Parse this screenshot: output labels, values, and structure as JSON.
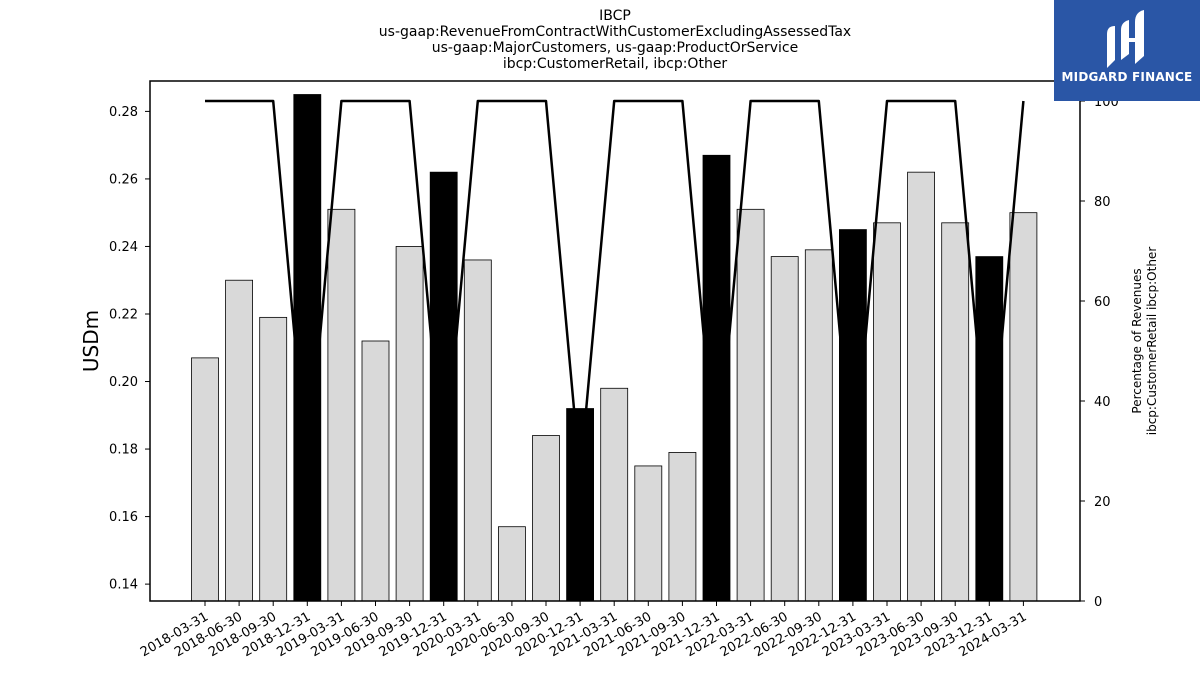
{
  "title": {
    "lines": [
      "IBCP",
      "us-gaap:RevenueFromContractWithCustomerExcludingAssessedTax",
      "us-gaap:MajorCustomers, us-gaap:ProductOrService",
      "ibcp:CustomerRetail, ibcp:Other"
    ]
  },
  "logo": {
    "text": "MIDGARD FINANCE",
    "bg_color": "#2a56a6"
  },
  "chart_data": {
    "type": "bar",
    "categories": [
      "2018-03-31",
      "2018-06-30",
      "2018-09-30",
      "2018-12-31",
      "2019-03-31",
      "2019-06-30",
      "2019-09-30",
      "2019-12-31",
      "2020-03-31",
      "2020-06-30",
      "2020-09-30",
      "2020-12-31",
      "2021-03-31",
      "2021-06-30",
      "2021-09-30",
      "2021-12-31",
      "2022-03-31",
      "2022-06-30",
      "2022-09-30",
      "2022-12-31",
      "2023-03-31",
      "2023-06-30",
      "2023-09-30",
      "2023-12-31",
      "2024-03-31"
    ],
    "series": [
      {
        "axis": "left",
        "kind": "bar",
        "values": [
          0.207,
          0.23,
          0.219,
          0.285,
          0.251,
          0.212,
          0.24,
          0.262,
          0.236,
          0.157,
          0.184,
          0.192,
          0.198,
          0.175,
          0.179,
          0.267,
          0.251,
          0.237,
          0.239,
          0.245,
          0.247,
          0.262,
          0.247,
          0.237,
          0.25
        ],
        "highlight": [
          false,
          false,
          false,
          true,
          false,
          false,
          false,
          true,
          false,
          false,
          false,
          true,
          false,
          false,
          false,
          true,
          false,
          false,
          false,
          true,
          false,
          false,
          false,
          true,
          false
        ],
        "color": "#d9d9d9",
        "highlight_color": "#000000"
      },
      {
        "axis": "right",
        "kind": "line",
        "values": [
          100,
          100,
          100,
          25,
          100,
          100,
          100,
          25,
          100,
          100,
          100,
          25,
          100,
          100,
          100,
          25,
          100,
          100,
          100,
          25,
          100,
          100,
          100,
          25,
          100
        ],
        "color": "#000000"
      }
    ],
    "ylabel": "USDm",
    "ylabel_right": [
      "Percentage of Revenues",
      "ibcp:CustomerRetail ibcp:Other"
    ],
    "ylim": [
      0.135,
      0.289
    ],
    "ylim_right": [
      0,
      104
    ],
    "yticks": [
      "0.14",
      "0.16",
      "0.18",
      "0.20",
      "0.22",
      "0.24",
      "0.26",
      "0.28"
    ],
    "yticks_right": [
      "0",
      "20",
      "40",
      "60",
      "80",
      "100"
    ],
    "grid": false,
    "legend": "none"
  }
}
